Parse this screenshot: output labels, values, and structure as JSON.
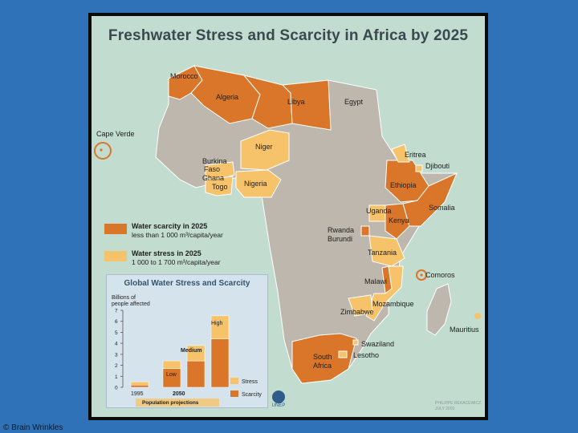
{
  "title": "Freshwater Stress and Scarcity in Africa by 2025",
  "colors": {
    "background": "#2f72b8",
    "ocean": "#c2dccf",
    "land": "#bdb7ad",
    "scarcity": "#d9762a",
    "stress": "#f7c36a",
    "border": "#ffffff"
  },
  "legend": {
    "scarcity": {
      "title": "Water scarcity in 2025",
      "desc": "less than 1 000 m³/capita/year"
    },
    "stress": {
      "title": "Water stress in 2025",
      "desc": "1 000 to 1 700 m³/capita/year"
    }
  },
  "countries": {
    "morocco": "Morocco",
    "algeria": "Algeria",
    "libya": "Libya",
    "egypt": "Egypt",
    "cape_verde": "Cape Verde",
    "niger": "Niger",
    "burkina": "Burkina",
    "faso": "Faso",
    "ghana": "Ghana",
    "togo": "Togo",
    "nigeria": "Nigeria",
    "eritrea": "Eritrea",
    "djibouti": "Djibouti",
    "ethiopia": "Ethiopia",
    "somalia": "Somalia",
    "uganda": "Uganda",
    "kenya": "Kenya",
    "rwanda": "Rwanda",
    "burundi": "Burundi",
    "tanzania": "Tanzania",
    "comoros": "Comoros",
    "malawi": "Malawi",
    "mozambique": "Mozambique",
    "zimbabwe": "Zimbabwe",
    "mauritius": "Mauritius",
    "swaziland": "Swaziland",
    "lesotho": "Lesotho",
    "south": "South",
    "africa": "Africa"
  },
  "inset": {
    "title": "Global Water Stress and Scarcity",
    "ylabel_line1": "Billions of",
    "ylabel_line2": "people affected",
    "yticks": [
      "7",
      "6",
      "5",
      "4",
      "3",
      "2",
      "1",
      "0"
    ],
    "group_labels": [
      "Low",
      "Medium",
      "High"
    ],
    "year_1995": "1995",
    "year_2050": "2050",
    "projection_label": "Population projections",
    "legend_stress": "Stress",
    "legend_scarcity": "Scarcity"
  },
  "chart_data": {
    "type": "bar",
    "title": "Global Water Stress and Scarcity",
    "ylabel": "Billions of people affected",
    "ylim": [
      0,
      7
    ],
    "categories": [
      "1995",
      "2050 Low",
      "2050 Medium",
      "2050 High"
    ],
    "series": [
      {
        "name": "Scarcity",
        "values": [
          0.2,
          1.7,
          2.4,
          4.4
        ]
      },
      {
        "name": "Stress",
        "values": [
          0.3,
          0.7,
          1.4,
          2.1
        ]
      }
    ]
  },
  "unep": "UNEP",
  "credit_line1": "PHILIPPE REKACEWICZ",
  "credit_line2": "JULY 2002",
  "copyright": "© Brain Wrinkles"
}
